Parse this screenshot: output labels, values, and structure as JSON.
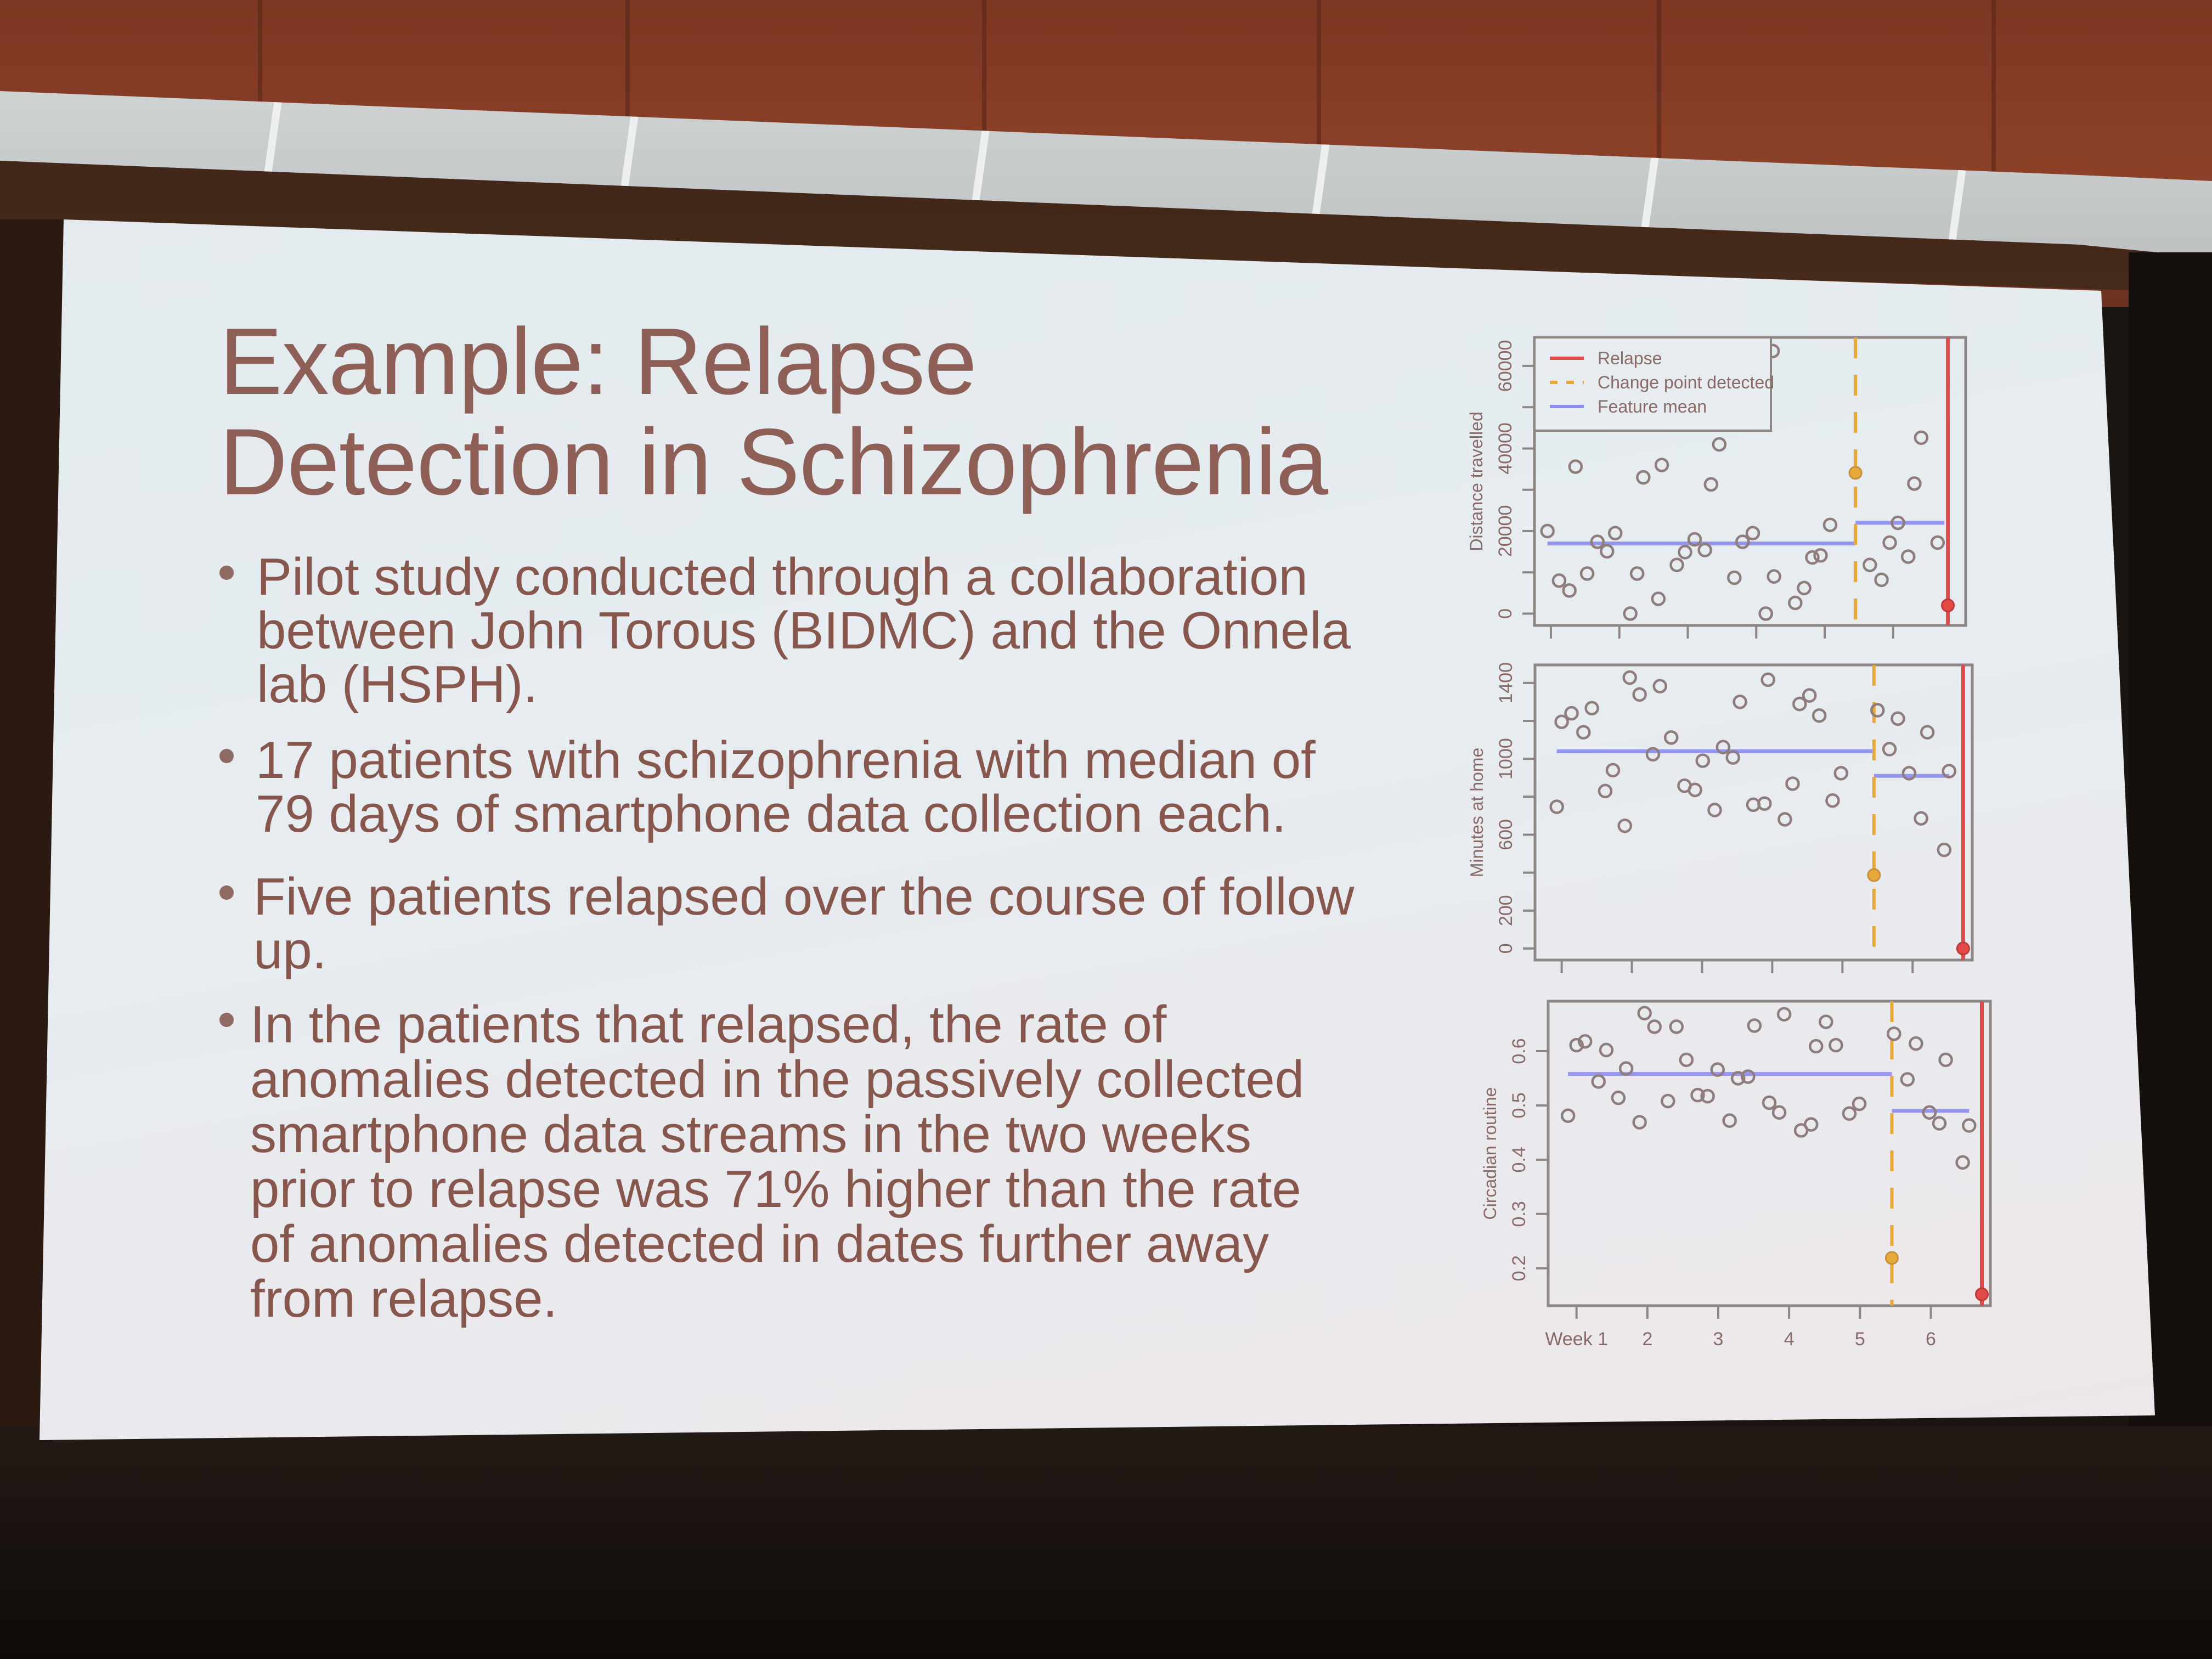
{
  "slide": {
    "title_lines": [
      "Example: Relapse",
      "Detection in Schizophrenia"
    ],
    "bullets": [
      {
        "lines": [
          "Pilot study conducted through a collaboration",
          "between John Torous (BIDMC) and the Onnela",
          "lab (HSPH)."
        ]
      },
      {
        "lines": [
          "17 patients with schizophrenia with median of",
          "79 days of smartphone data collection each."
        ]
      },
      {
        "lines": [
          "Five patients relapsed over the course of follow",
          "up."
        ]
      },
      {
        "lines": [
          "In the patients that relapsed, the rate of",
          "anomalies detected in the passively collected",
          "smartphone data streams in the two weeks",
          "prior to relapse was 71% higher than the rate",
          "of anomalies detected in dates further away",
          "from relapse."
        ]
      }
    ],
    "colors": {
      "title": "#8d5f56",
      "body": "#87574d",
      "background": "#e6ecf0"
    }
  },
  "chart_data": [
    {
      "type": "scatter",
      "ylabel": "Distance travelled",
      "ylim": [
        -2850,
        66900
      ],
      "xlim": [
        0.76,
        7.06
      ],
      "yticks": [
        0,
        10000,
        20000,
        30000,
        40000,
        50000,
        60000
      ],
      "ytick_labels": [
        "0",
        "20000",
        "40000",
        "60000"
      ],
      "xticks": [
        1,
        2,
        3,
        4,
        5,
        6
      ],
      "xtick_labels": [],
      "legend": {
        "position": "top-left",
        "entries": [
          {
            "label": "Relapse",
            "color": "#e24a4a",
            "style": "solid"
          },
          {
            "label": "Change point detected",
            "color": "#e6a93a",
            "style": "dashed"
          },
          {
            "label": "Feature mean",
            "color": "#8c8cf0",
            "style": "solid"
          }
        ]
      },
      "points": [
        [
          0.95,
          20000
        ],
        [
          1.12,
          8000
        ],
        [
          1.27,
          5600
        ],
        [
          1.36,
          35600
        ],
        [
          1.53,
          9700
        ],
        [
          1.68,
          17400
        ],
        [
          1.82,
          15100
        ],
        [
          1.94,
          19500
        ],
        [
          2.16,
          0
        ],
        [
          2.26,
          9700
        ],
        [
          2.35,
          33000
        ],
        [
          2.57,
          3600
        ],
        [
          2.62,
          36000
        ],
        [
          2.84,
          11800
        ],
        [
          2.96,
          14900
        ],
        [
          3.1,
          18000
        ],
        [
          3.25,
          15400
        ],
        [
          3.34,
          31300
        ],
        [
          3.46,
          41000
        ],
        [
          3.68,
          8700
        ],
        [
          3.8,
          17400
        ],
        [
          3.95,
          19500
        ],
        [
          4.14,
          0
        ],
        [
          4.24,
          63600
        ],
        [
          4.26,
          9000
        ],
        [
          4.57,
          2600
        ],
        [
          4.7,
          6200
        ],
        [
          4.82,
          13600
        ],
        [
          4.94,
          14100
        ],
        [
          5.08,
          21500
        ],
        [
          5.66,
          11800
        ],
        [
          5.83,
          8200
        ],
        [
          5.95,
          17200
        ],
        [
          6.07,
          22000
        ],
        [
          6.22,
          13800
        ],
        [
          6.31,
          31500
        ],
        [
          6.41,
          42600
        ],
        [
          6.65,
          17200
        ]
      ],
      "feature_mean": [
        {
          "from": 0.95,
          "to": 5.45,
          "value": 17000
        },
        {
          "from": 5.45,
          "to": 6.75,
          "value": 22000
        }
      ],
      "change_point": {
        "x": 5.45,
        "value": 34100
      },
      "relapse": {
        "x": 6.8,
        "value": 2000
      }
    },
    {
      "type": "scatter",
      "ylabel": "Minutes at home",
      "ylim": [
        -61,
        1495
      ],
      "xlim": [
        0.62,
        6.85
      ],
      "yticks": [
        0,
        200,
        400,
        600,
        800,
        1000,
        1200,
        1400
      ],
      "ytick_labels": [
        "0",
        "200",
        "600",
        "1000",
        "1400"
      ],
      "xticks": [
        1,
        2,
        3,
        4,
        5,
        6
      ],
      "xtick_labels": [],
      "points": [
        [
          0.93,
          747
        ],
        [
          1.0,
          1195
        ],
        [
          1.14,
          1240
        ],
        [
          1.31,
          1140
        ],
        [
          1.43,
          1267
        ],
        [
          1.62,
          830
        ],
        [
          1.73,
          940
        ],
        [
          1.9,
          647
        ],
        [
          1.97,
          1428
        ],
        [
          2.11,
          1339
        ],
        [
          2.3,
          1024
        ],
        [
          2.4,
          1383
        ],
        [
          2.56,
          1112
        ],
        [
          2.75,
          858
        ],
        [
          2.9,
          836
        ],
        [
          3.01,
          990
        ],
        [
          3.18,
          730
        ],
        [
          3.3,
          1062
        ],
        [
          3.44,
          1007
        ],
        [
          3.54,
          1300
        ],
        [
          3.73,
          758
        ],
        [
          3.89,
          764
        ],
        [
          3.94,
          1417
        ],
        [
          4.18,
          681
        ],
        [
          4.29,
          869
        ],
        [
          4.39,
          1289
        ],
        [
          4.53,
          1334
        ],
        [
          4.67,
          1228
        ],
        [
          4.86,
          780
        ],
        [
          4.98,
          924
        ],
        [
          5.5,
          1256
        ],
        [
          5.67,
          1051
        ],
        [
          5.79,
          1212
        ],
        [
          5.95,
          924
        ],
        [
          6.12,
          686
        ],
        [
          6.21,
          1140
        ],
        [
          6.45,
          520
        ],
        [
          6.52,
          935
        ]
      ],
      "feature_mean": [
        {
          "from": 0.93,
          "to": 5.45,
          "value": 1040
        },
        {
          "from": 5.45,
          "to": 6.52,
          "value": 910
        }
      ],
      "change_point": {
        "x": 5.45,
        "value": 387
      },
      "relapse": {
        "x": 6.72,
        "value": 0
      }
    },
    {
      "type": "scatter",
      "ylabel": "Circadian routine",
      "ylim": [
        0.131,
        0.692
      ],
      "xlim": [
        0.6,
        6.84
      ],
      "yticks": [
        0.2,
        0.3,
        0.4,
        0.5,
        0.6
      ],
      "ytick_labels": [
        "0.2",
        "0.3",
        "0.4",
        "0.5",
        "0.6"
      ],
      "xticks": [
        1,
        2,
        3,
        4,
        5,
        6
      ],
      "xtick_labels": [
        "Week 1",
        "2",
        "3",
        "4",
        "5",
        "6"
      ],
      "points": [
        [
          0.88,
          0.481
        ],
        [
          1.0,
          0.611
        ],
        [
          1.12,
          0.618
        ],
        [
          1.31,
          0.544
        ],
        [
          1.42,
          0.602
        ],
        [
          1.59,
          0.514
        ],
        [
          1.7,
          0.568
        ],
        [
          1.89,
          0.469
        ],
        [
          1.96,
          0.67
        ],
        [
          2.1,
          0.645
        ],
        [
          2.29,
          0.508
        ],
        [
          2.41,
          0.645
        ],
        [
          2.55,
          0.584
        ],
        [
          2.71,
          0.519
        ],
        [
          2.85,
          0.517
        ],
        [
          2.99,
          0.566
        ],
        [
          3.16,
          0.472
        ],
        [
          3.28,
          0.55
        ],
        [
          3.42,
          0.553
        ],
        [
          3.51,
          0.647
        ],
        [
          3.72,
          0.505
        ],
        [
          3.86,
          0.487
        ],
        [
          3.93,
          0.668
        ],
        [
          4.17,
          0.454
        ],
        [
          4.31,
          0.465
        ],
        [
          4.38,
          0.609
        ],
        [
          4.52,
          0.654
        ],
        [
          4.66,
          0.611
        ],
        [
          4.85,
          0.485
        ],
        [
          4.99,
          0.503
        ],
        [
          5.48,
          0.632
        ],
        [
          5.67,
          0.548
        ],
        [
          5.79,
          0.614
        ],
        [
          5.98,
          0.487
        ],
        [
          6.12,
          0.467
        ],
        [
          6.21,
          0.584
        ],
        [
          6.45,
          0.395
        ],
        [
          6.54,
          0.463
        ]
      ],
      "feature_mean": [
        {
          "from": 0.88,
          "to": 5.45,
          "value": 0.558
        },
        {
          "from": 5.45,
          "to": 6.54,
          "value": 0.49
        }
      ],
      "change_point": {
        "x": 5.45,
        "value": 0.219
      },
      "relapse": {
        "x": 6.72,
        "value": 0.152
      }
    }
  ]
}
